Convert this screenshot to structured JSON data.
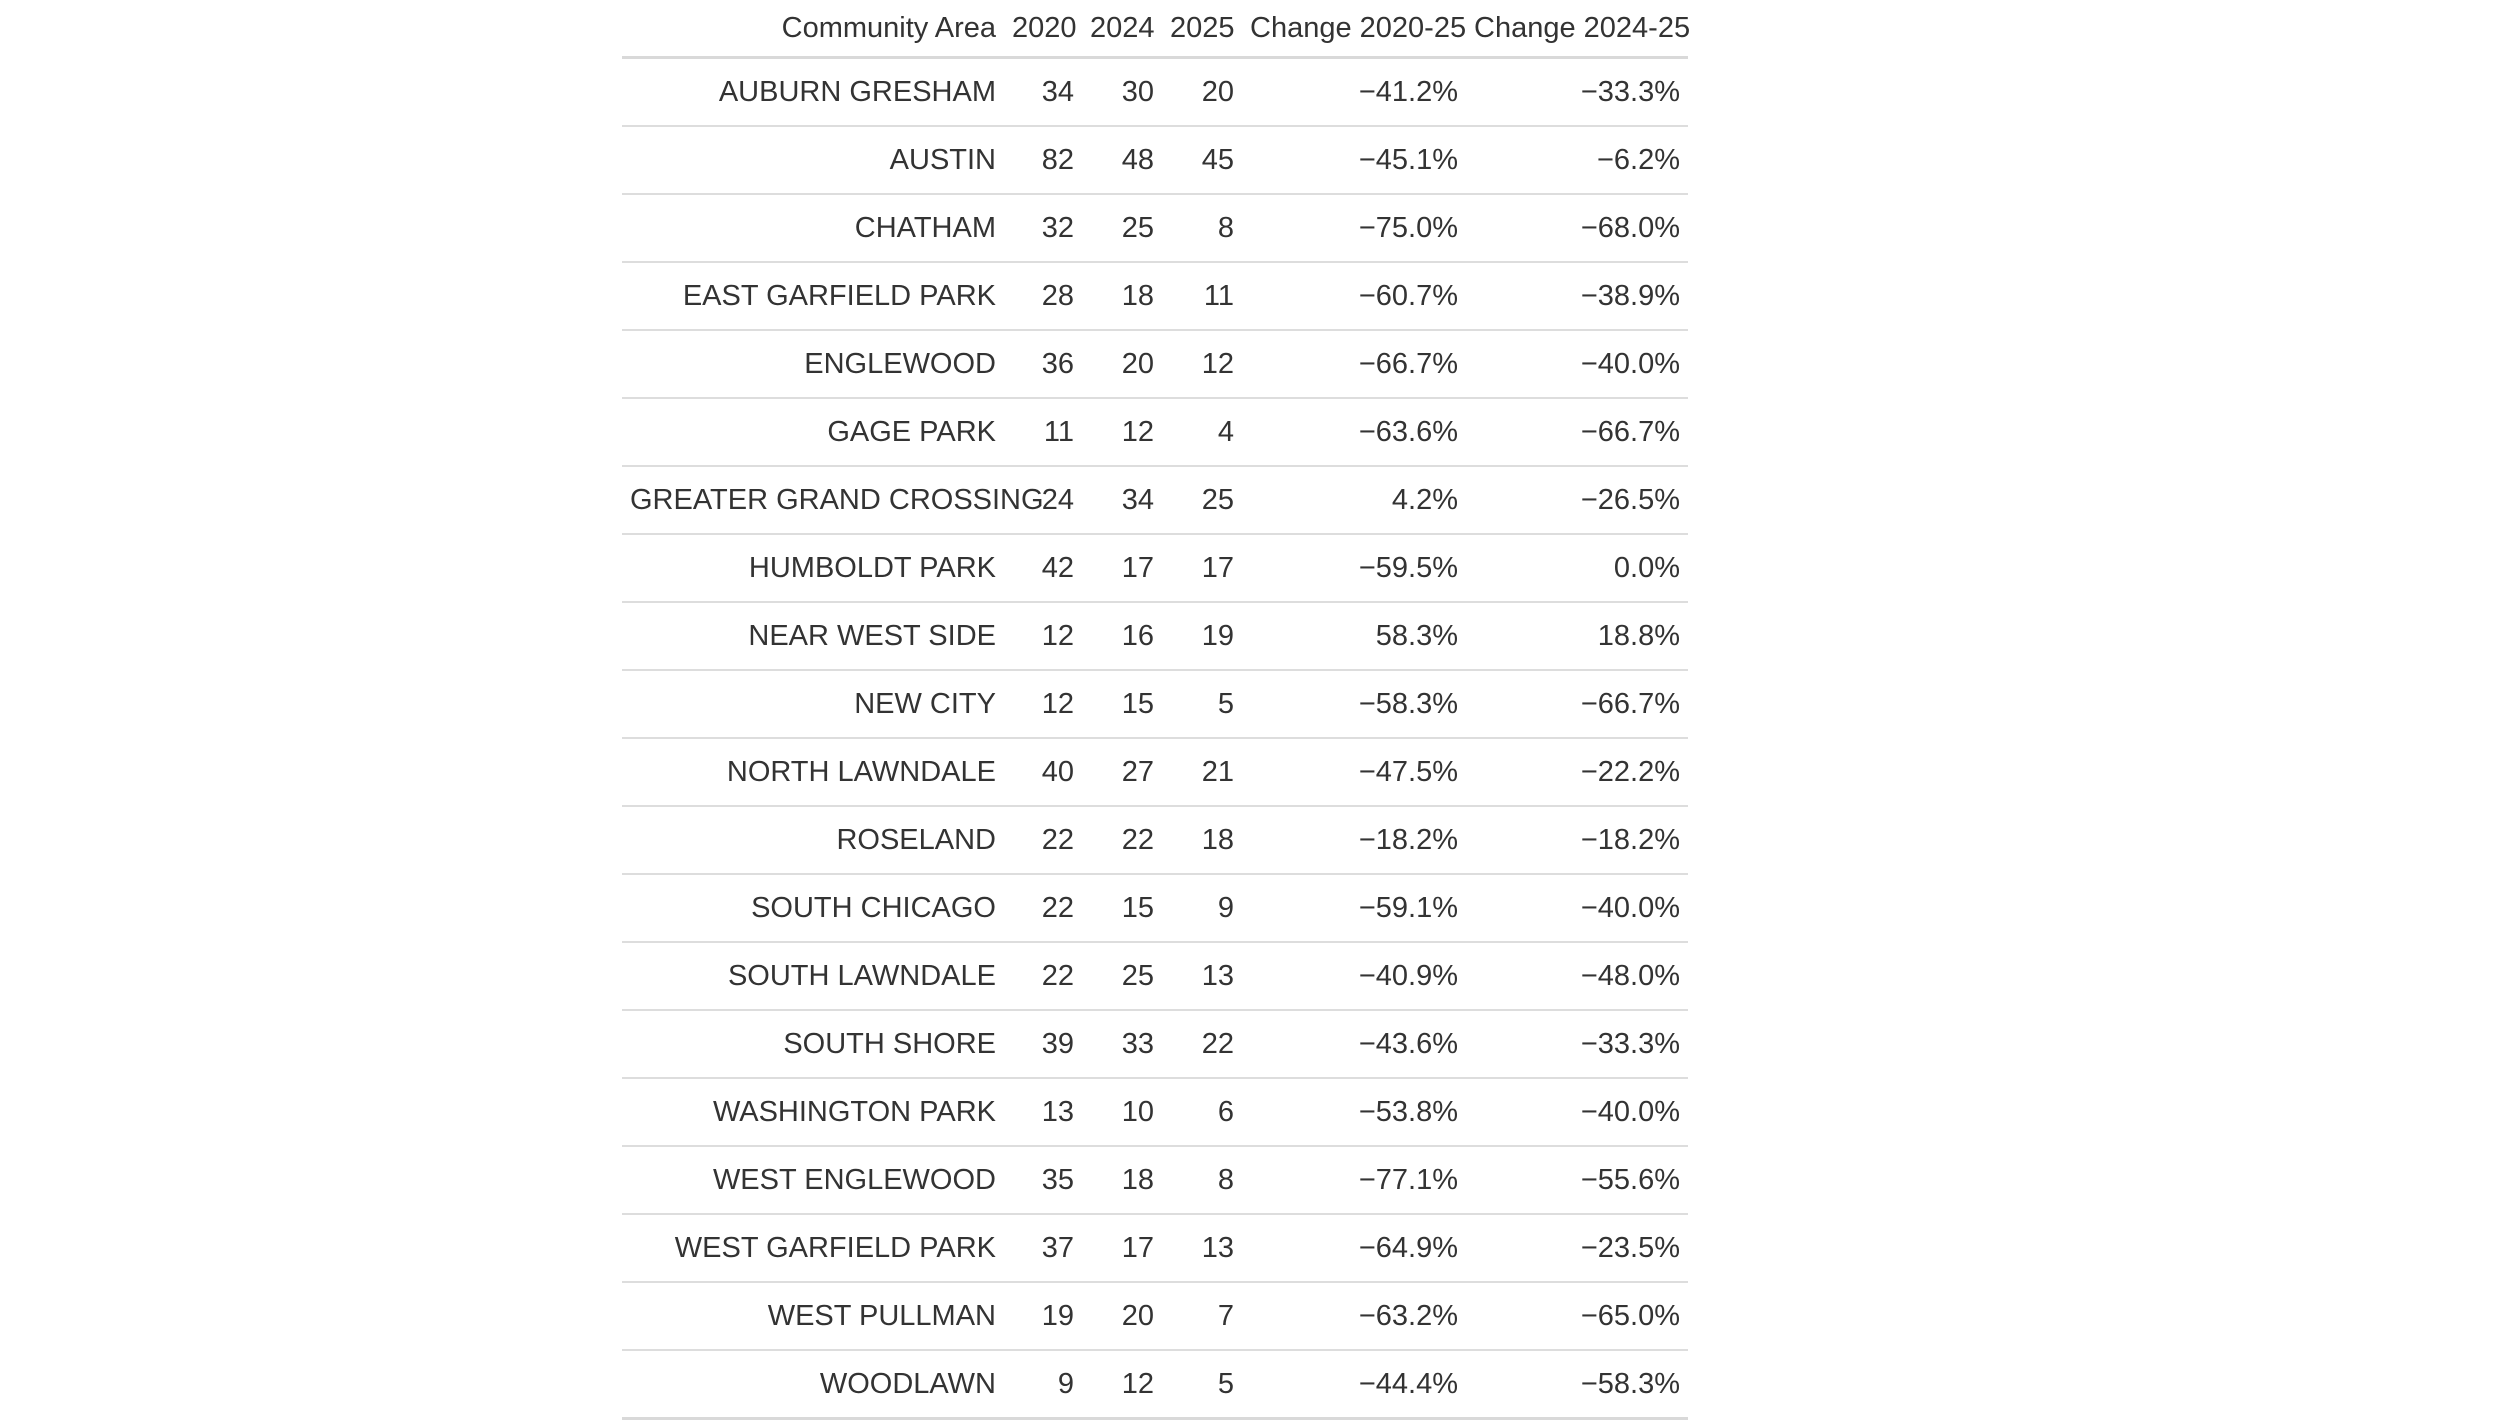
{
  "table": {
    "headers": [
      "Community Area",
      "2020",
      "2024",
      "2025",
      "Change 2020-25",
      "Change 2024-25"
    ],
    "rows": [
      [
        "AUBURN GRESHAM",
        "34",
        "30",
        "20",
        "−41.2%",
        "−33.3%"
      ],
      [
        "AUSTIN",
        "82",
        "48",
        "45",
        "−45.1%",
        "−6.2%"
      ],
      [
        "CHATHAM",
        "32",
        "25",
        "8",
        "−75.0%",
        "−68.0%"
      ],
      [
        "EAST GARFIELD PARK",
        "28",
        "18",
        "11",
        "−60.7%",
        "−38.9%"
      ],
      [
        "ENGLEWOOD",
        "36",
        "20",
        "12",
        "−66.7%",
        "−40.0%"
      ],
      [
        "GAGE PARK",
        "11",
        "12",
        "4",
        "−63.6%",
        "−66.7%"
      ],
      [
        "GREATER GRAND CROSSING",
        "24",
        "34",
        "25",
        "4.2%",
        "−26.5%"
      ],
      [
        "HUMBOLDT PARK",
        "42",
        "17",
        "17",
        "−59.5%",
        "0.0%"
      ],
      [
        "NEAR WEST SIDE",
        "12",
        "16",
        "19",
        "58.3%",
        "18.8%"
      ],
      [
        "NEW CITY",
        "12",
        "15",
        "5",
        "−58.3%",
        "−66.7%"
      ],
      [
        "NORTH LAWNDALE",
        "40",
        "27",
        "21",
        "−47.5%",
        "−22.2%"
      ],
      [
        "ROSELAND",
        "22",
        "22",
        "18",
        "−18.2%",
        "−18.2%"
      ],
      [
        "SOUTH CHICAGO",
        "22",
        "15",
        "9",
        "−59.1%",
        "−40.0%"
      ],
      [
        "SOUTH LAWNDALE",
        "22",
        "25",
        "13",
        "−40.9%",
        "−48.0%"
      ],
      [
        "SOUTH SHORE",
        "39",
        "33",
        "22",
        "−43.6%",
        "−33.3%"
      ],
      [
        "WASHINGTON PARK",
        "13",
        "10",
        "6",
        "−53.8%",
        "−40.0%"
      ],
      [
        "WEST ENGLEWOOD",
        "35",
        "18",
        "8",
        "−77.1%",
        "−55.6%"
      ],
      [
        "WEST GARFIELD PARK",
        "37",
        "17",
        "13",
        "−64.9%",
        "−23.5%"
      ],
      [
        "WEST PULLMAN",
        "19",
        "20",
        "7",
        "−63.2%",
        "−65.0%"
      ],
      [
        "WOODLAWN",
        "9",
        "12",
        "5",
        "−44.4%",
        "−58.3%"
      ]
    ]
  }
}
